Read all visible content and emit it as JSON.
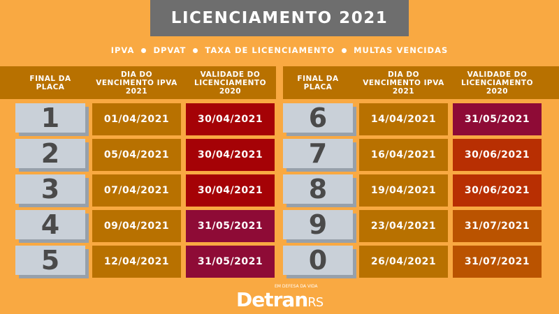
{
  "title": "LICENCIAMENTO 2021",
  "subtitle": [
    "IPVA",
    "DPVAT",
    "TAXA DE LICENCIAMENTO",
    "MULTAS VENCIDAS"
  ],
  "headers": {
    "plate": "FINAL DA PLACA",
    "ipva": "DIA DO VENCIMENTO IPVA 2021",
    "validity": "VALIDADE DO LICENCIAMENTO 2020"
  },
  "rows": [
    {
      "plate": "1",
      "ipva": "01/04/2021",
      "validity": "30/04/2021",
      "color": "#A50206"
    },
    {
      "plate": "2",
      "ipva": "05/04/2021",
      "validity": "30/04/2021",
      "color": "#A50206"
    },
    {
      "plate": "3",
      "ipva": "07/04/2021",
      "validity": "30/04/2021",
      "color": "#A50206"
    },
    {
      "plate": "4",
      "ipva": "09/04/2021",
      "validity": "31/05/2021",
      "color": "#8E0B36"
    },
    {
      "plate": "5",
      "ipva": "12/04/2021",
      "validity": "31/05/2021",
      "color": "#8E0B36"
    },
    {
      "plate": "6",
      "ipva": "14/04/2021",
      "validity": "31/05/2021",
      "color": "#8E0B36"
    },
    {
      "plate": "7",
      "ipva": "16/04/2021",
      "validity": "30/06/2021",
      "color": "#B82F02"
    },
    {
      "plate": "8",
      "ipva": "19/04/2021",
      "validity": "30/06/2021",
      "color": "#B82F02"
    },
    {
      "plate": "9",
      "ipva": "23/04/2021",
      "validity": "31/07/2021",
      "color": "#BA5300"
    },
    {
      "plate": "0",
      "ipva": "26/04/2021",
      "validity": "31/07/2021",
      "color": "#BA5300"
    }
  ],
  "colors": {
    "background": "#F9A942",
    "header": "#B87100",
    "ipva_cell": "#B87100",
    "plate": "#C9D0D8"
  },
  "logo": {
    "tagline": "EM DEFESA DA VIDA",
    "name": "Detran",
    "suffix": "RS"
  }
}
